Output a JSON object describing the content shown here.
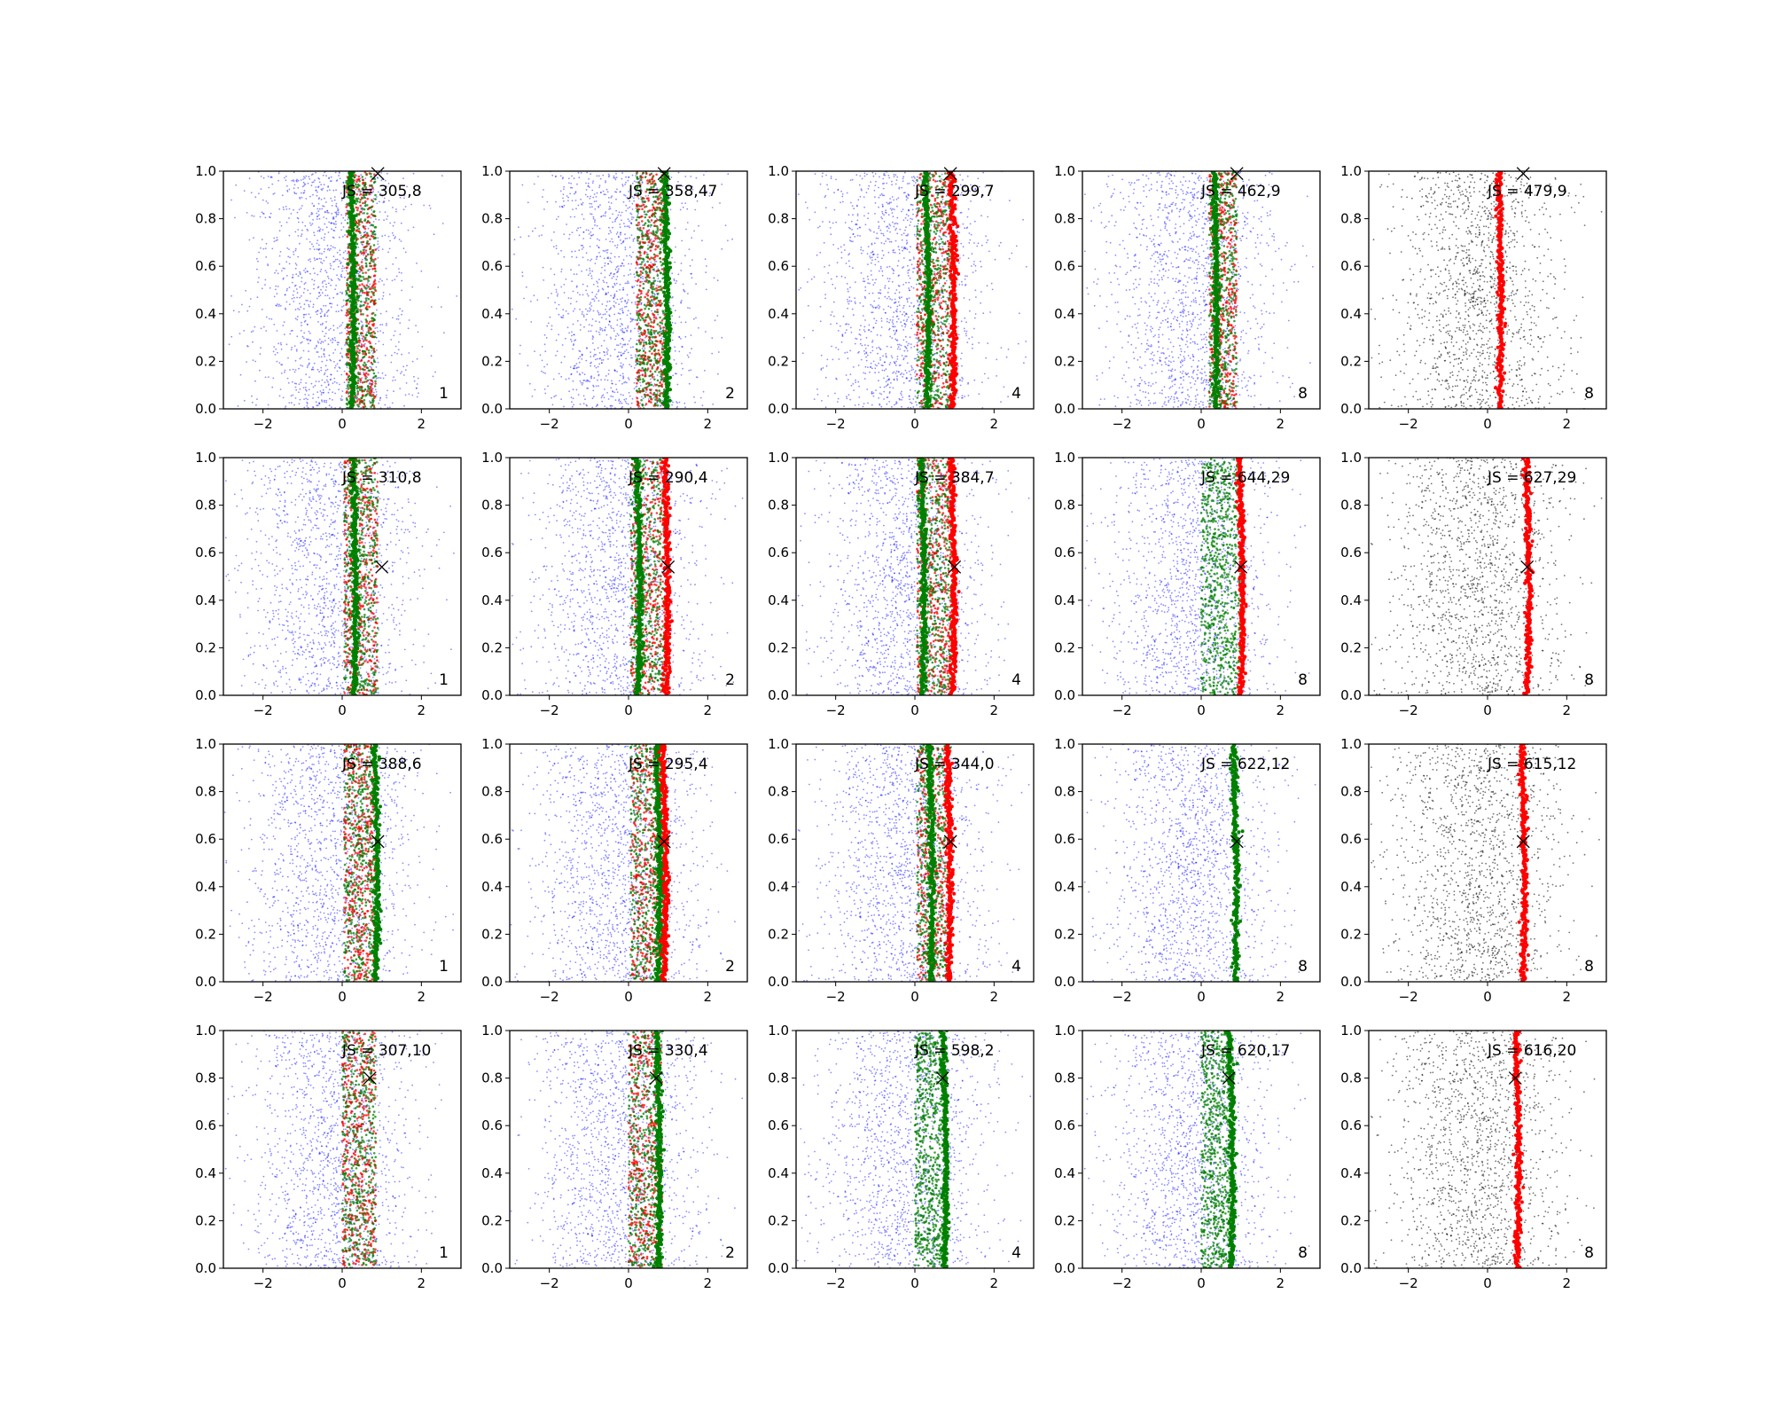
{
  "chart_data": {
    "type": "scatter",
    "grid": {
      "rows": 4,
      "cols": 5
    },
    "xlim": [
      -3,
      3
    ],
    "ylim": [
      0,
      1
    ],
    "xticks": [
      -2,
      0,
      2
    ],
    "yticks": [
      "0.0",
      "0.2",
      "0.4",
      "0.6",
      "0.8",
      "1.0"
    ],
    "grid_lines": false,
    "colors": {
      "blue": "#0000ff",
      "green": "#008000",
      "red": "#ff0000",
      "black": "#000000"
    },
    "panels": [
      {
        "row": 0,
        "col": 0,
        "annotation": "JS = 305,8",
        "corner": "1",
        "marker": {
          "x": 0.9,
          "y": 0.99
        },
        "style": "mixed",
        "band": [
          0.1,
          0.85
        ],
        "green_line": 0.25,
        "red_line": null
      },
      {
        "row": 0,
        "col": 1,
        "annotation": "JS = 358,47",
        "corner": "2",
        "marker": {
          "x": 0.9,
          "y": 0.99
        },
        "style": "mixed",
        "band": [
          0.2,
          0.95
        ],
        "green_line": 0.95,
        "red_line": null
      },
      {
        "row": 0,
        "col": 2,
        "annotation": "JS = 299,7",
        "corner": "4",
        "marker": {
          "x": 0.9,
          "y": 0.99
        },
        "style": "mixed",
        "band": [
          0.05,
          0.95
        ],
        "green_line": 0.3,
        "red_line": 0.95
      },
      {
        "row": 0,
        "col": 3,
        "annotation": "JS = 462,9",
        "corner": "8",
        "marker": {
          "x": 0.9,
          "y": 0.99
        },
        "style": "mixed",
        "band": [
          0.2,
          0.9
        ],
        "green_line": 0.35,
        "red_line": null
      },
      {
        "row": 0,
        "col": 4,
        "annotation": "JS = 479,9",
        "corner": "8",
        "marker": {
          "x": 0.9,
          "y": 0.99
        },
        "style": "gray",
        "band": [
          0.2,
          0.9
        ],
        "green_line": null,
        "red_line": 0.3
      },
      {
        "row": 1,
        "col": 0,
        "annotation": "JS = 310,8",
        "corner": "1",
        "marker": {
          "x": 1.0,
          "y": 0.54
        },
        "style": "mixed",
        "band": [
          0.05,
          0.9
        ],
        "green_line": 0.3,
        "red_line": null
      },
      {
        "row": 1,
        "col": 1,
        "annotation": "JS = 290,4",
        "corner": "2",
        "marker": {
          "x": 1.0,
          "y": 0.54
        },
        "style": "mixed",
        "band": [
          0.05,
          0.95
        ],
        "green_line": 0.25,
        "red_line": 0.95
      },
      {
        "row": 1,
        "col": 2,
        "annotation": "JS = 384,7",
        "corner": "4",
        "marker": {
          "x": 1.0,
          "y": 0.54
        },
        "style": "mixed",
        "band": [
          0.05,
          0.95
        ],
        "green_line": 0.2,
        "red_line": 0.95
      },
      {
        "row": 1,
        "col": 3,
        "annotation": "JS = 644,29",
        "corner": "8",
        "marker": {
          "x": 1.0,
          "y": 0.54
        },
        "style": "greenfield",
        "band": [
          0.0,
          1.0
        ],
        "green_line": null,
        "red_line": 1.0
      },
      {
        "row": 1,
        "col": 4,
        "annotation": "JS = 627,29",
        "corner": "8",
        "marker": {
          "x": 1.0,
          "y": 0.54
        },
        "style": "gray",
        "band": [
          0.0,
          1.0
        ],
        "green_line": null,
        "red_line": 1.0
      },
      {
        "row": 2,
        "col": 0,
        "annotation": "JS = 388,6",
        "corner": "1",
        "marker": {
          "x": 0.9,
          "y": 0.59
        },
        "style": "mixed",
        "band": [
          0.05,
          0.85
        ],
        "green_line": 0.85,
        "red_line": null
      },
      {
        "row": 2,
        "col": 1,
        "annotation": "JS = 295,4",
        "corner": "2",
        "marker": {
          "x": 0.9,
          "y": 0.59
        },
        "style": "mixed",
        "band": [
          0.05,
          0.9
        ],
        "green_line": 0.75,
        "red_line": 0.9
      },
      {
        "row": 2,
        "col": 2,
        "annotation": "JS = 344,0",
        "corner": "4",
        "marker": {
          "x": 0.9,
          "y": 0.59
        },
        "style": "mixed",
        "band": [
          0.05,
          0.9
        ],
        "green_line": 0.4,
        "red_line": 0.85
      },
      {
        "row": 2,
        "col": 3,
        "annotation": "JS = 622,12",
        "corner": "8",
        "marker": {
          "x": 0.9,
          "y": 0.59
        },
        "style": "blueonly",
        "band": [
          0.8,
          0.9
        ],
        "green_line": 0.85,
        "red_line": null
      },
      {
        "row": 2,
        "col": 4,
        "annotation": "JS = 615,12",
        "corner": "8",
        "marker": {
          "x": 0.9,
          "y": 0.59
        },
        "style": "gray",
        "band": [
          0.8,
          0.9
        ],
        "green_line": null,
        "red_line": 0.9
      },
      {
        "row": 3,
        "col": 0,
        "annotation": "JS = 307,10",
        "corner": "1",
        "marker": {
          "x": 0.7,
          "y": 0.8
        },
        "style": "mixed",
        "band": [
          0.0,
          0.85
        ],
        "green_line": null,
        "red_line": null
      },
      {
        "row": 3,
        "col": 1,
        "annotation": "JS = 330,4",
        "corner": "2",
        "marker": {
          "x": 0.7,
          "y": 0.8
        },
        "style": "mixed",
        "band": [
          0.0,
          0.85
        ],
        "green_line": 0.75,
        "red_line": null
      },
      {
        "row": 3,
        "col": 2,
        "annotation": "JS = 598,2",
        "corner": "4",
        "marker": {
          "x": 0.7,
          "y": 0.8
        },
        "style": "greenfield",
        "band": [
          0.0,
          0.8
        ],
        "green_line": 0.75,
        "red_line": null
      },
      {
        "row": 3,
        "col": 3,
        "annotation": "JS = 620,17",
        "corner": "8",
        "marker": {
          "x": 0.7,
          "y": 0.8
        },
        "style": "greenfield",
        "band": [
          0.0,
          0.8
        ],
        "green_line": 0.75,
        "red_line": null
      },
      {
        "row": 3,
        "col": 4,
        "annotation": "JS = 616,20",
        "corner": "8",
        "marker": {
          "x": 0.7,
          "y": 0.8
        },
        "style": "gray",
        "band": [
          0.0,
          0.8
        ],
        "green_line": null,
        "red_line": 0.75
      }
    ]
  }
}
